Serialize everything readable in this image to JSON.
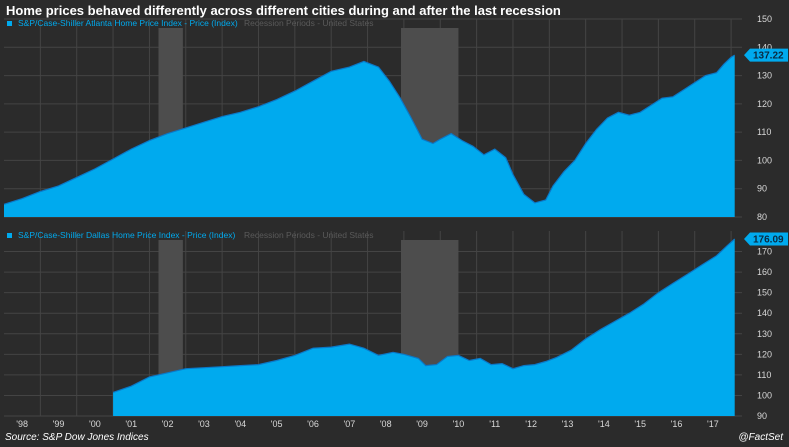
{
  "title": "Home prices behaved differently across different cities during and after the last recession",
  "source": "Source: S&P Dow Jones Indices",
  "credit": "@FactSet",
  "colors": {
    "background": "#2b2b2b",
    "grid": "#444444",
    "series": "#00aaee",
    "series_line": "#0a78c8",
    "recession": "#4d4d4d",
    "legend_recession": "#5a5a5a"
  },
  "chart_data": [
    {
      "type": "area",
      "panel": "top",
      "series": [
        {
          "name": "S&P/Case-Shiller Atlanta Home Price Index - Price (Index)",
          "last_value_label": "137.22",
          "x": [
            1997.0,
            1997.5,
            1998.0,
            1998.5,
            1999.0,
            1999.5,
            2000.0,
            2000.5,
            2001.0,
            2001.5,
            2002.0,
            2002.5,
            2003.0,
            2003.5,
            2004.0,
            2004.5,
            2005.0,
            2005.5,
            2006.0,
            2006.5,
            2006.9,
            2007.3,
            2007.6,
            2007.9,
            2008.2,
            2008.5,
            2008.8,
            2009.0,
            2009.3,
            2009.6,
            2009.9,
            2010.2,
            2010.5,
            2010.8,
            2011.0,
            2011.3,
            2011.6,
            2011.9,
            2012.1,
            2012.4,
            2012.7,
            2013.0,
            2013.3,
            2013.6,
            2013.9,
            2014.2,
            2014.5,
            2014.8,
            2015.1,
            2015.4,
            2015.7,
            2016.0,
            2016.3,
            2016.6,
            2016.8,
            2017.0,
            2017.1
          ],
          "values": [
            84.5,
            86.5,
            89,
            91,
            94,
            97,
            100.5,
            104,
            107,
            109.5,
            111.5,
            113.5,
            115.5,
            117,
            119,
            121.5,
            124.5,
            128,
            131.5,
            133,
            135,
            133,
            128,
            122,
            115,
            107.5,
            106,
            107.5,
            109.5,
            107,
            105,
            102,
            104,
            101,
            95,
            88,
            85,
            86,
            91,
            96,
            100,
            106,
            111,
            115,
            117,
            116,
            117,
            119.5,
            122,
            122.5,
            125,
            127.5,
            130,
            131,
            134,
            136.5,
            137.22
          ]
        },
        {
          "name": "Recession Periods - United States",
          "ranges": [
            [
              2001.25,
              2001.92
            ],
            [
              2007.92,
              2009.5
            ]
          ]
        }
      ],
      "ylim": [
        80,
        150
      ],
      "yticks": [
        80,
        90,
        100,
        110,
        120,
        130,
        140,
        150
      ],
      "xlim": [
        1997.0,
        2017.3
      ]
    },
    {
      "type": "area",
      "panel": "bottom",
      "series": [
        {
          "name": "S&P/Case-Shiller Dallas Home Price Index - Price (Index)",
          "last_value_label": "176.09",
          "x": [
            2000.0,
            2000.5,
            2001.0,
            2001.5,
            2002.0,
            2002.5,
            2003.0,
            2003.5,
            2004.0,
            2004.5,
            2005.0,
            2005.5,
            2006.0,
            2006.5,
            2006.9,
            2007.3,
            2007.7,
            2008.0,
            2008.4,
            2008.6,
            2008.9,
            2009.2,
            2009.5,
            2009.8,
            2010.1,
            2010.4,
            2010.7,
            2011.0,
            2011.3,
            2011.6,
            2011.9,
            2012.2,
            2012.6,
            2013.0,
            2013.4,
            2013.8,
            2014.2,
            2014.6,
            2015.0,
            2015.4,
            2015.8,
            2016.2,
            2016.6,
            2016.9,
            2017.1
          ],
          "values": [
            101.5,
            104.5,
            109,
            111,
            113,
            113.5,
            114,
            114.5,
            115,
            117,
            119.5,
            123,
            123.5,
            125,
            123,
            119.5,
            121,
            120,
            118,
            114.5,
            115,
            119,
            119.5,
            117,
            118,
            115,
            115.5,
            113,
            114.5,
            115,
            116.5,
            118.5,
            122,
            127.5,
            132,
            136,
            140,
            144.5,
            150,
            154.5,
            159,
            163.5,
            168,
            173,
            176.09
          ]
        },
        {
          "name": "Recession Periods - United States",
          "ranges": [
            [
              2001.25,
              2001.92
            ],
            [
              2007.92,
              2009.5
            ]
          ]
        }
      ],
      "ylim": [
        90,
        180
      ],
      "yticks": [
        90,
        100,
        110,
        120,
        130,
        140,
        150,
        160,
        170
      ],
      "xlim": [
        1997.0,
        2017.3
      ],
      "xtick_labels": [
        "'98",
        "'99",
        "'00",
        "'01",
        "'02",
        "'03",
        "'04",
        "'05",
        "'06",
        "'07",
        "'08",
        "'09",
        "'10",
        "'11",
        "'12",
        "'13",
        "'14",
        "'15",
        "'16",
        "'17"
      ]
    }
  ]
}
